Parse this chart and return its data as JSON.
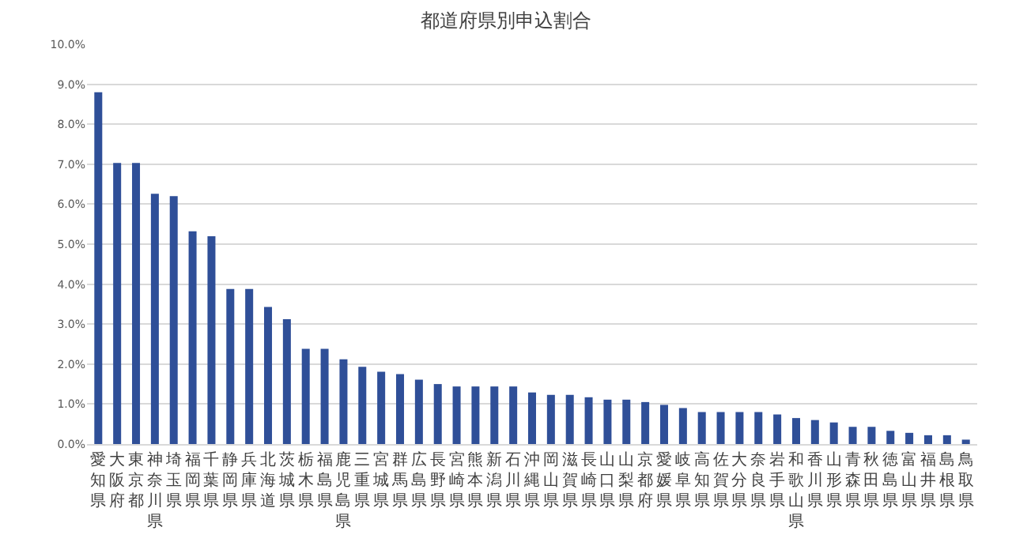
{
  "chart_data": {
    "type": "bar",
    "title": "都道府県別申込割合",
    "categories": [
      "愛知県",
      "大阪府",
      "東京都",
      "神奈川県",
      "埼玉県",
      "福岡県",
      "千葉県",
      "静岡県",
      "兵庫県",
      "北海道",
      "茨城県",
      "栃木県",
      "福島県",
      "鹿児島県",
      "三重県",
      "宮城県",
      "群馬県",
      "広島県",
      "長野県",
      "宮崎県",
      "熊本県",
      "新潟県",
      "石川県",
      "沖縄県",
      "岡山県",
      "滋賀県",
      "長崎県",
      "山口県",
      "山梨県",
      "京都府",
      "愛媛県",
      "岐阜県",
      "高知県",
      "佐賀県",
      "大分県",
      "奈良県",
      "岩手県",
      "和歌山県",
      "香川県",
      "山形県",
      "青森県",
      "秋田県",
      "徳島県",
      "富山県",
      "福井県",
      "島根県",
      "鳥取県"
    ],
    "values": [
      8.8,
      7.03,
      7.03,
      6.26,
      6.2,
      5.32,
      5.2,
      3.88,
      3.88,
      3.43,
      3.12,
      2.38,
      2.38,
      2.12,
      1.93,
      1.81,
      1.75,
      1.61,
      1.5,
      1.44,
      1.44,
      1.44,
      1.44,
      1.29,
      1.23,
      1.23,
      1.17,
      1.11,
      1.11,
      1.05,
      0.98,
      0.9,
      0.8,
      0.8,
      0.8,
      0.8,
      0.74,
      0.65,
      0.6,
      0.54,
      0.43,
      0.43,
      0.33,
      0.28,
      0.22,
      0.22,
      0.11
    ],
    "color": "#2f4f98",
    "ylim": [
      0,
      10
    ],
    "yticks": [
      {
        "value": 0,
        "label": "0.0%"
      },
      {
        "value": 1,
        "label": "1.0%"
      },
      {
        "value": 2,
        "label": "2.0%"
      },
      {
        "value": 3,
        "label": "3.0%"
      },
      {
        "value": 4,
        "label": "4.0%"
      },
      {
        "value": 5,
        "label": "5.0%"
      },
      {
        "value": 6,
        "label": "6.0%"
      },
      {
        "value": 7,
        "label": "7.0%"
      },
      {
        "value": 8,
        "label": "8.0%"
      },
      {
        "value": 9,
        "label": "9.0%"
      },
      {
        "value": 10,
        "label": "10.0%"
      }
    ],
    "grid": true,
    "legend": false
  }
}
